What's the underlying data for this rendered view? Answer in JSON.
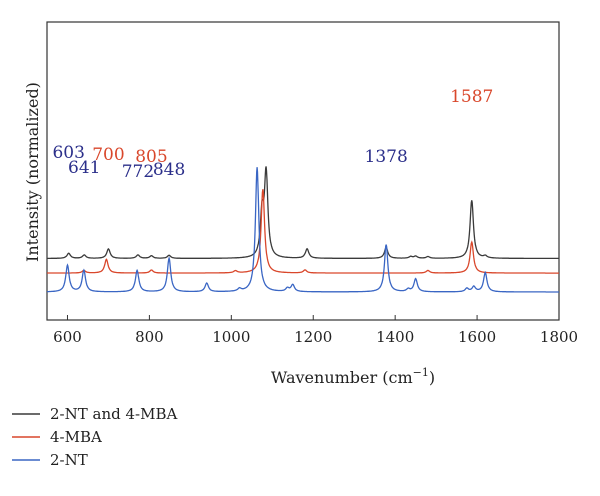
{
  "chart_data": {
    "type": "line",
    "xlabel": "Wavenumber (cm",
    "xlabel_sup": "−1",
    "xlabel_end": ")",
    "ylabel": "Intensity (normalized)",
    "xlim": [
      550,
      1800
    ],
    "xticks": [
      600,
      800,
      1000,
      1200,
      1400,
      1600,
      1800
    ],
    "x_tick_labels": [
      "600",
      "800",
      "1000",
      "1200",
      "1400",
      "1600",
      "1800"
    ],
    "y_ticks_shown": false,
    "grid": false,
    "legend_position": "bottom-left, outside plot",
    "series": [
      {
        "name": "2-NT and 4-MBA",
        "color": "#3a3a3a",
        "baseline": 0.78,
        "peaks": [
          [
            603,
            0.12
          ],
          [
            641,
            0.08
          ],
          [
            700,
            0.22
          ],
          [
            772,
            0.08
          ],
          [
            805,
            0.06
          ],
          [
            848,
            0.07
          ],
          [
            1075,
            0.95
          ],
          [
            1085,
            1.95
          ],
          [
            1185,
            0.22
          ],
          [
            1378,
            0.25
          ],
          [
            1438,
            0.04
          ],
          [
            1450,
            0.05
          ],
          [
            1480,
            0.04
          ],
          [
            1587,
            1.35
          ],
          [
            1620,
            0.05
          ]
        ]
      },
      {
        "name": "4-MBA",
        "color": "#d9472b",
        "baseline": 0.44,
        "peaks": [
          [
            640,
            0.06
          ],
          [
            695,
            0.32
          ],
          [
            805,
            0.07
          ],
          [
            1010,
            0.05
          ],
          [
            1077,
            1.95
          ],
          [
            1180,
            0.07
          ],
          [
            1480,
            0.06
          ],
          [
            1587,
            0.72
          ]
        ]
      },
      {
        "name": "2-NT",
        "color": "#3a66c4",
        "baseline": 0.0,
        "peaks": [
          [
            600,
            0.62
          ],
          [
            640,
            0.5
          ],
          [
            770,
            0.5
          ],
          [
            848,
            0.78
          ],
          [
            940,
            0.2
          ],
          [
            1020,
            0.06
          ],
          [
            1063,
            2.9
          ],
          [
            1137,
            0.08
          ],
          [
            1150,
            0.16
          ],
          [
            1378,
            1.1
          ],
          [
            1432,
            0.06
          ],
          [
            1450,
            0.3
          ],
          [
            1575,
            0.08
          ],
          [
            1592,
            0.12
          ],
          [
            1620,
            0.45
          ]
        ]
      }
    ],
    "annotations": [
      {
        "text": "603",
        "x": 603,
        "color": "#2b2f8a"
      },
      {
        "text": "641",
        "x": 641,
        "color": "#2b2f8a"
      },
      {
        "text": "700",
        "x": 700,
        "color": "#d9472b"
      },
      {
        "text": "772",
        "x": 772,
        "color": "#2b2f8a"
      },
      {
        "text": "805",
        "x": 805,
        "color": "#d9472b"
      },
      {
        "text": "848",
        "x": 848,
        "color": "#2b2f8a"
      },
      {
        "text": "1378",
        "x": 1378,
        "color": "#2b2f8a"
      },
      {
        "text": "1587",
        "x": 1587,
        "color": "#d9472b"
      }
    ]
  },
  "legend": {
    "items": [
      {
        "label": "2-NT and 4-MBA",
        "color": "#3a3a3a"
      },
      {
        "label": "4-MBA",
        "color": "#d9472b"
      },
      {
        "label": "2-NT",
        "color": "#3a66c4"
      }
    ]
  }
}
